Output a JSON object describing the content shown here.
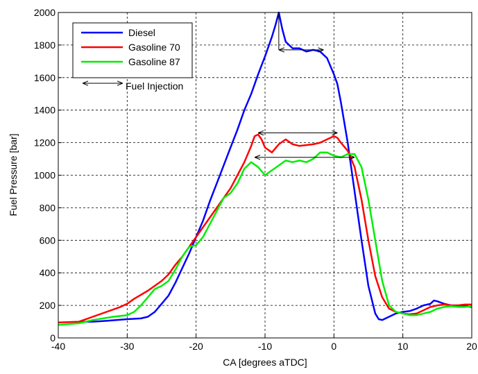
{
  "chart_data": {
    "type": "line",
    "xlabel": "CA [degrees aTDC]",
    "ylabel": "Fuel Pressure [bar]",
    "xlim": [
      -40,
      20
    ],
    "ylim": [
      0,
      2000
    ],
    "xticks": [
      -40,
      -30,
      -20,
      -10,
      0,
      10,
      20
    ],
    "yticks": [
      0,
      200,
      400,
      600,
      800,
      1000,
      1200,
      1400,
      1600,
      1800,
      2000
    ],
    "grid": true,
    "legend": "upper left",
    "series": [
      {
        "name": "Diesel",
        "color": "#0000ff",
        "x": [
          -37,
          -35,
          -33,
          -30,
          -28,
          -27,
          -26,
          -25,
          -24,
          -23,
          -22,
          -21,
          -20,
          -19,
          -18,
          -17,
          -16,
          -15,
          -14,
          -13,
          -12,
          -11,
          -10,
          -9,
          -8.5,
          -8,
          -7.5,
          -7,
          -6,
          -5,
          -4,
          -3,
          -2,
          -1,
          0,
          0.5,
          1,
          2,
          3,
          4,
          5,
          6,
          6.5,
          7,
          8,
          9,
          10,
          11,
          12,
          13,
          14,
          14.5,
          15,
          16,
          17,
          18,
          19,
          20
        ],
        "values": [
          100,
          100,
          105,
          115,
          120,
          130,
          160,
          210,
          260,
          340,
          430,
          520,
          620,
          720,
          840,
          950,
          1060,
          1170,
          1280,
          1400,
          1500,
          1620,
          1730,
          1850,
          1920,
          2000,
          1900,
          1820,
          1780,
          1780,
          1760,
          1770,
          1760,
          1720,
          1620,
          1560,
          1450,
          1200,
          900,
          600,
          320,
          150,
          115,
          110,
          130,
          150,
          160,
          165,
          180,
          200,
          210,
          230,
          225,
          210,
          200,
          200,
          195,
          190
        ]
      },
      {
        "name": "Gasoline 70",
        "color": "#ff0000",
        "x": [
          -40,
          -37,
          -35,
          -33,
          -31,
          -30,
          -29,
          -27,
          -25,
          -24,
          -23,
          -22,
          -21,
          -20,
          -19,
          -18,
          -17,
          -16,
          -15,
          -14,
          -13,
          -12,
          -11.5,
          -11,
          -10.5,
          -10,
          -9,
          -8,
          -7,
          -6,
          -5,
          -4,
          -3,
          -2,
          -1,
          0,
          0.5,
          1,
          2,
          3,
          4,
          5,
          6,
          7,
          8,
          9,
          10,
          11,
          12,
          13,
          14,
          15,
          16,
          17,
          18,
          19,
          20
        ],
        "values": [
          95,
          100,
          130,
          160,
          190,
          210,
          240,
          290,
          350,
          390,
          450,
          500,
          560,
          620,
          680,
          740,
          800,
          860,
          920,
          1000,
          1080,
          1180,
          1240,
          1250,
          1220,
          1170,
          1140,
          1190,
          1220,
          1190,
          1180,
          1185,
          1190,
          1200,
          1220,
          1240,
          1230,
          1200,
          1150,
          1050,
          850,
          600,
          380,
          250,
          180,
          160,
          150,
          145,
          150,
          170,
          190,
          200,
          205,
          200,
          200,
          205,
          205
        ]
      },
      {
        "name": "Gasoline 87",
        "color": "#00ee00",
        "x": [
          -40,
          -37,
          -35,
          -32,
          -30,
          -29,
          -28,
          -27,
          -26,
          -25,
          -24,
          -23,
          -22,
          -21,
          -20,
          -19,
          -18,
          -17,
          -16,
          -15,
          -14,
          -13,
          -12,
          -11,
          -10,
          -9,
          -8,
          -7,
          -6,
          -5,
          -4,
          -3,
          -2,
          -1,
          0,
          1,
          2,
          3,
          4,
          5,
          6,
          7,
          8,
          9,
          10,
          11,
          12,
          13,
          14,
          15,
          16,
          17,
          18,
          19,
          20
        ],
        "values": [
          80,
          90,
          110,
          130,
          140,
          160,
          200,
          250,
          300,
          320,
          350,
          420,
          500,
          560,
          570,
          620,
          700,
          780,
          860,
          890,
          950,
          1040,
          1080,
          1050,
          1000,
          1030,
          1060,
          1090,
          1080,
          1090,
          1080,
          1100,
          1140,
          1140,
          1120,
          1110,
          1130,
          1130,
          1050,
          850,
          600,
          350,
          200,
          160,
          150,
          140,
          140,
          150,
          160,
          180,
          190,
          195,
          190,
          190,
          195
        ]
      }
    ],
    "annotation": {
      "text": "Fuel Injection",
      "arrows": [
        {
          "x": [
            -8,
            -1.5
          ],
          "y": 1770
        },
        {
          "x": [
            -11,
            0.5
          ],
          "y": 1260
        },
        {
          "x": [
            -11.5,
            3
          ],
          "y": 1110
        }
      ]
    }
  }
}
